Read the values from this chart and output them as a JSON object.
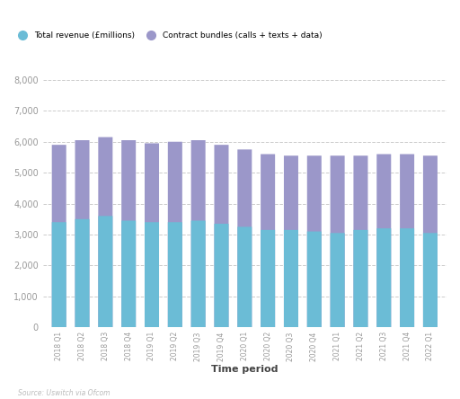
{
  "categories": [
    "2018 Q1",
    "2018 Q2",
    "2018 Q3",
    "2018 Q4",
    "2019 Q1",
    "2019 Q2",
    "2019 Q3",
    "2019 Q4",
    "2020 Q1",
    "2020 Q2",
    "2020 Q3",
    "2020 Q4",
    "2021 Q1",
    "2021 Q2",
    "2021 Q3",
    "2021 Q4",
    "2022 Q1"
  ],
  "total_revenue": [
    3400,
    3500,
    3600,
    3450,
    3400,
    3400,
    3450,
    3350,
    3250,
    3150,
    3150,
    3100,
    3050,
    3150,
    3200,
    3200,
    3050
  ],
  "contract_bundles": [
    2500,
    2550,
    2550,
    2600,
    2550,
    2600,
    2600,
    2550,
    2500,
    2450,
    2400,
    2450,
    2500,
    2400,
    2400,
    2400,
    2500
  ],
  "color_revenue": "#6BBCD6",
  "color_bundles": "#9B97C9",
  "background_color": "#FFFFFF",
  "ylim": [
    0,
    8500
  ],
  "yticks": [
    0,
    1000,
    2000,
    3000,
    4000,
    5000,
    6000,
    7000,
    8000
  ],
  "xlabel": "Time period",
  "legend_revenue": "Total revenue (£millions)",
  "legend_bundles": "Contract bundles (calls + texts + data)",
  "source_text": "Source: Uswitch via Ofcom",
  "grid_color": "#CCCCCC",
  "bar_width": 0.62
}
